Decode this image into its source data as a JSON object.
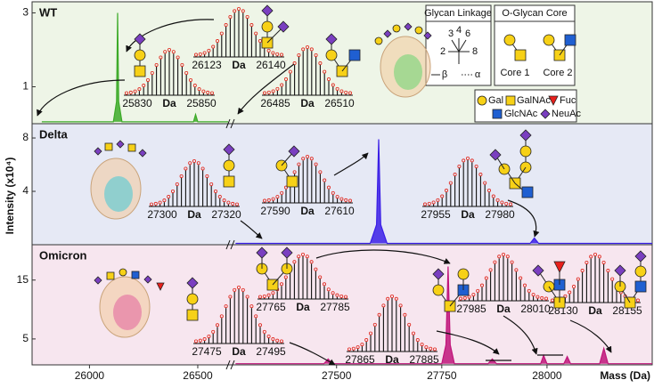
{
  "y_axis_label": "Intensity (x10⁴)",
  "glycan_legend": {
    "linkage_title": "Glycan Linkage",
    "linkage_positions": [
      "3",
      "4",
      "6",
      "2",
      "8"
    ],
    "beta": "β",
    "alpha": "α",
    "core_title": "O-Glycan Core",
    "cores": [
      "Core 1",
      "Core 2"
    ],
    "monosaccharides": [
      {
        "name": "Gal",
        "color": "#f7d117"
      },
      {
        "name": "GalNAc",
        "color": "#f7d117"
      },
      {
        "name": "Fuc",
        "color": "#e8201c"
      },
      {
        "name": "GlcNAc",
        "color": "#1f5fd1"
      },
      {
        "name": "NeuAc",
        "color": "#7a3fc0"
      }
    ]
  },
  "chart_data": [
    {
      "type": "line",
      "title": "WT",
      "background": "#eef5e7",
      "xlim": [
        [
          25735,
          26640
        ],
        [
          27255,
          28250
        ]
      ],
      "ylim": [
        0,
        3.3
      ],
      "yticks": [
        1,
        3
      ],
      "series": [
        {
          "color": "#3caa28",
          "x": [
            25780,
            25980,
            26110,
            26125,
            26130,
            26135,
            26150,
            26300,
            26480,
            26490,
            26500,
            26640
          ],
          "values": [
            0.05,
            0.05,
            0.05,
            0.6,
            3.0,
            0.6,
            0.05,
            0.05,
            0.05,
            0.25,
            0.05,
            0.05
          ]
        }
      ],
      "annotations": [
        {
          "left": "25830",
          "unit": "Da",
          "right": "25850"
        },
        {
          "left": "26123",
          "unit": "Da",
          "right": "26140"
        },
        {
          "left": "26485",
          "unit": "Da",
          "right": "26510"
        }
      ]
    },
    {
      "type": "line",
      "title": "Delta",
      "background": "#e6e9f5",
      "xlim": [
        [
          25735,
          26640
        ],
        [
          27255,
          28250
        ]
      ],
      "ylim": [
        0,
        9.07
      ],
      "yticks": [
        4,
        8
      ],
      "series": [
        {
          "color": "#3a1ee6",
          "x": [
            27260,
            27580,
            27595,
            27600,
            27605,
            27620,
            27960,
            27970,
            27980,
            28250
          ],
          "values": [
            0.1,
            0.1,
            1.5,
            7.9,
            1.5,
            0.1,
            0.1,
            0.5,
            0.1,
            0.1
          ]
        }
      ],
      "annotations": [
        {
          "left": "27300",
          "unit": "Da",
          "right": "27320"
        },
        {
          "left": "27590",
          "unit": "Da",
          "right": "27610"
        },
        {
          "left": "27955",
          "unit": "Da",
          "right": "27980"
        }
      ]
    },
    {
      "type": "line",
      "title": "Omicron",
      "background": "#f7e6ef",
      "xlim": [
        [
          25735,
          26640
        ],
        [
          27255,
          28250
        ]
      ],
      "ylim": [
        0.6,
        21
      ],
      "yticks": [
        5,
        15
      ],
      "xticks": [
        26000,
        26500,
        27500,
        27750,
        28000
      ],
      "xlabel": "Mass (Da)",
      "series": [
        {
          "color": "#c0157a",
          "x": [
            27260,
            27470,
            27480,
            27490,
            27750,
            27760,
            27765,
            27770,
            27780,
            27860,
            27870,
            27880,
            27985,
            27992,
            28000,
            28040,
            28048,
            28056,
            28125,
            28135,
            28145,
            28250
          ],
          "values": [
            0.8,
            0.8,
            1.6,
            0.8,
            0.8,
            4,
            17.3,
            4,
            0.8,
            0.8,
            1.6,
            0.8,
            0.8,
            2.2,
            0.8,
            0.8,
            2,
            0.8,
            0.8,
            3.4,
            0.8,
            0.8
          ]
        }
      ],
      "annotations": [
        {
          "left": "27475",
          "unit": "Da",
          "right": "27495"
        },
        {
          "left": "27765",
          "unit": "Da",
          "right": "27785"
        },
        {
          "left": "27865",
          "unit": "Da",
          "right": "27885"
        },
        {
          "left": "27985",
          "unit": "Da",
          "right": "28010"
        },
        {
          "left": "28130",
          "unit": "Da",
          "right": "28155"
        }
      ]
    }
  ]
}
